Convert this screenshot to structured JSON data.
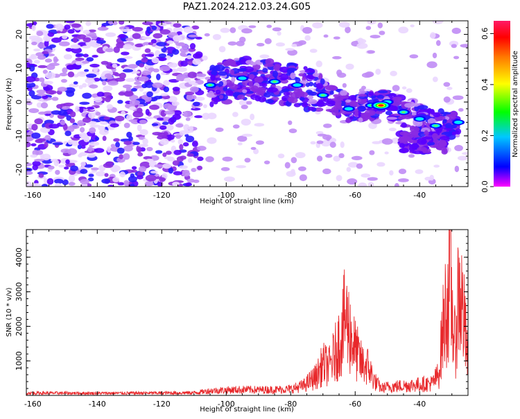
{
  "title": "PAZ1.2024.212.03.24.G05",
  "colors": {
    "snr_line": "#e8282b",
    "spectrogram_scale": [
      "#ffffff",
      "#e6ccff",
      "#a35cf0",
      "#6a00ff",
      "#0000ff",
      "#00ffff",
      "#00ff00",
      "#ffff00",
      "#ff8800",
      "#ff0000",
      "#ff1493"
    ]
  },
  "chart_data": [
    {
      "type": "heatmap",
      "xlabel": "Height of straight line (km)",
      "ylabel": "Frequency (Hz)",
      "xlim": [
        -162,
        -25
      ],
      "ylim": [
        -25,
        24
      ],
      "xticks": [
        -160,
        -140,
        -120,
        -100,
        -80,
        -60,
        -40
      ],
      "yticks": [
        20,
        10,
        0,
        -10,
        -20
      ],
      "colorbar": {
        "label": "Normalized spectral amplitude",
        "range": [
          0.0,
          0.65
        ],
        "ticks": [
          0.0,
          0.2,
          0.4,
          0.6
        ]
      },
      "ridge": {
        "description_points": [
          {
            "x": -105,
            "y": 5
          },
          {
            "x": -95,
            "y": 7
          },
          {
            "x": -85,
            "y": 6
          },
          {
            "x": -78,
            "y": 5
          },
          {
            "x": -70,
            "y": 2
          },
          {
            "x": -62,
            "y": -2
          },
          {
            "x": -55,
            "y": -1
          },
          {
            "x": -50,
            "y": 0
          },
          {
            "x": -45,
            "y": -3
          },
          {
            "x": -40,
            "y": -5
          },
          {
            "x": -35,
            "y": -7
          },
          {
            "x": -28,
            "y": -6
          }
        ],
        "peak": {
          "x": -52,
          "y": -1,
          "value": 0.65
        }
      }
    },
    {
      "type": "line",
      "xlabel": "Height of straight line (km)",
      "ylabel": "SNR (10 * v/v)",
      "xlim": [
        -162,
        -25
      ],
      "ylim": [
        0,
        4800
      ],
      "xticks": [
        -160,
        -140,
        -120,
        -100,
        -80,
        -60,
        -40
      ],
      "yticks": [
        1000,
        2000,
        3000,
        4000
      ],
      "profile_points": [
        [
          -162,
          100
        ],
        [
          -140,
          90
        ],
        [
          -120,
          100
        ],
        [
          -110,
          110
        ],
        [
          -105,
          190
        ],
        [
          -100,
          220
        ],
        [
          -95,
          240
        ],
        [
          -90,
          230
        ],
        [
          -85,
          240
        ],
        [
          -80,
          260
        ],
        [
          -76,
          400
        ],
        [
          -72,
          800
        ],
        [
          -70,
          1300
        ],
        [
          -68,
          1200
        ],
        [
          -66,
          1800
        ],
        [
          -64,
          2600
        ],
        [
          -63,
          3300
        ],
        [
          -62,
          2800
        ],
        [
          -60,
          1900
        ],
        [
          -58,
          1300
        ],
        [
          -56,
          1200
        ],
        [
          -54,
          600
        ],
        [
          -52,
          300
        ],
        [
          -50,
          350
        ],
        [
          -45,
          400
        ],
        [
          -40,
          450
        ],
        [
          -36,
          500
        ],
        [
          -34,
          900
        ],
        [
          -33,
          2500
        ],
        [
          -32,
          3500
        ],
        [
          -31,
          4300
        ],
        [
          -30.5,
          4800
        ],
        [
          -30,
          3600
        ],
        [
          -29,
          2000
        ],
        [
          -28,
          4300
        ],
        [
          -27,
          3900
        ],
        [
          -26,
          2800
        ],
        [
          -25,
          1200
        ]
      ]
    }
  ]
}
